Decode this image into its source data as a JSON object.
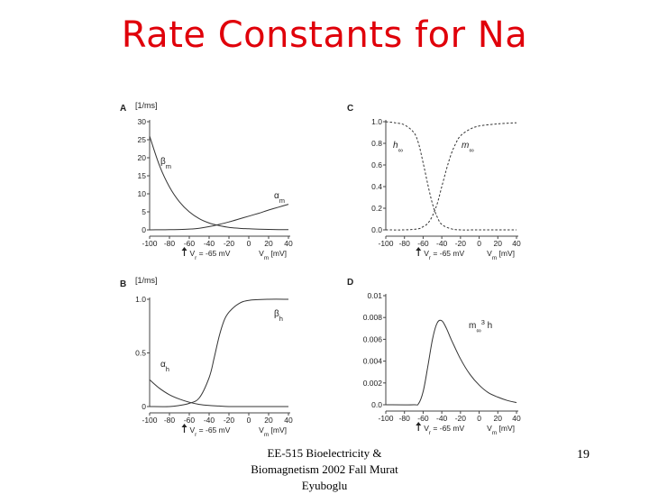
{
  "slide": {
    "title": "Rate Constants for Na",
    "footer_line1": "EE-515 Bioelectricity &",
    "footer_line2": "Biomagnetism 2002 Fall Murat",
    "footer_line3": "Eyuboglu",
    "page_number": "19",
    "title_color": "#e0000a"
  },
  "chart_data": [
    {
      "panel": "A",
      "type": "line",
      "ylabel": "[1/ms]",
      "xlim": [
        -100,
        40
      ],
      "ylim": [
        0,
        30
      ],
      "xticks": [
        -100,
        -80,
        -60,
        -40,
        -20,
        0,
        20,
        40
      ],
      "yticks": [
        0,
        5,
        10,
        15,
        20,
        25,
        30
      ],
      "ytick_labels": [
        "0",
        "5",
        "10",
        "15",
        "20",
        "25",
        "30"
      ],
      "rest_marker": {
        "x": -65,
        "label": "V_r = -65 mV"
      },
      "xaxis_title": "V_m [mV]",
      "series": [
        {
          "name": "β_m",
          "style": "solid",
          "x": [
            -100,
            -90,
            -80,
            -70,
            -60,
            -50,
            -40,
            -30,
            -20,
            -10,
            0,
            10,
            20,
            30,
            40
          ],
          "y": [
            26,
            17.8,
            11.9,
            7.8,
            5.0,
            3.1,
            1.9,
            1.2,
            0.7,
            0.45,
            0.3,
            0.2,
            0.12,
            0.08,
            0.05
          ]
        },
        {
          "name": "α_m",
          "style": "solid",
          "x": [
            -100,
            -90,
            -80,
            -70,
            -60,
            -50,
            -40,
            -30,
            -20,
            -10,
            0,
            10,
            20,
            30,
            40
          ],
          "y": [
            0.01,
            0.02,
            0.05,
            0.1,
            0.22,
            0.45,
            0.9,
            1.5,
            2.2,
            3.0,
            3.8,
            4.6,
            5.5,
            6.3,
            7.1
          ]
        }
      ]
    },
    {
      "panel": "C",
      "type": "line",
      "xlim": [
        -100,
        40
      ],
      "ylim": [
        0,
        1
      ],
      "xticks": [
        -100,
        -80,
        -60,
        -40,
        -20,
        0,
        20,
        40
      ],
      "yticks": [
        0,
        0.2,
        0.4,
        0.6,
        0.8,
        1.0
      ],
      "ytick_labels": [
        "0.0",
        "0.2",
        "0.4",
        "0.6",
        "0.8",
        "1.0"
      ],
      "rest_marker": {
        "x": -65,
        "label": "V_r = -65 mV"
      },
      "xaxis_title": "V_m [mV]",
      "series": [
        {
          "name": "h_∞",
          "style": "dashed",
          "x": [
            -100,
            -90,
            -80,
            -70,
            -65,
            -60,
            -55,
            -50,
            -45,
            -40,
            -30,
            -20,
            0,
            40
          ],
          "y": [
            1.0,
            0.99,
            0.97,
            0.9,
            0.8,
            0.62,
            0.42,
            0.24,
            0.12,
            0.05,
            0.01,
            0.0,
            0.0,
            0.0
          ]
        },
        {
          "name": "m_∞",
          "style": "dashed",
          "x": [
            -100,
            -80,
            -65,
            -60,
            -55,
            -50,
            -45,
            -40,
            -35,
            -30,
            -25,
            -20,
            -10,
            0,
            20,
            40
          ],
          "y": [
            0.0,
            0.0,
            0.01,
            0.03,
            0.06,
            0.13,
            0.24,
            0.4,
            0.56,
            0.7,
            0.8,
            0.87,
            0.93,
            0.96,
            0.98,
            0.99
          ]
        }
      ]
    },
    {
      "panel": "B",
      "type": "line",
      "ylabel": "[1/ms]",
      "xlim": [
        -100,
        40
      ],
      "ylim": [
        0,
        1
      ],
      "xticks": [
        -100,
        -80,
        -60,
        -40,
        -20,
        0,
        20,
        40
      ],
      "yticks": [
        0,
        0.5,
        1.0
      ],
      "ytick_labels": [
        "0",
        "0.5",
        "1.0"
      ],
      "rest_marker": {
        "x": -65,
        "label": "V_r = -65 mV"
      },
      "xaxis_title": "V_m [mV]",
      "series": [
        {
          "name": "β_h",
          "style": "solid",
          "x": [
            -100,
            -80,
            -70,
            -60,
            -50,
            -40,
            -35,
            -30,
            -25,
            -20,
            -10,
            0,
            20,
            40
          ],
          "y": [
            0.0,
            0.0,
            0.01,
            0.03,
            0.08,
            0.27,
            0.45,
            0.65,
            0.8,
            0.88,
            0.96,
            0.99,
            1.0,
            1.0
          ]
        },
        {
          "name": "α_h",
          "style": "solid",
          "x": [
            -100,
            -90,
            -80,
            -70,
            -60,
            -50,
            -40,
            -30,
            -20,
            0,
            40
          ],
          "y": [
            0.25,
            0.17,
            0.11,
            0.07,
            0.04,
            0.02,
            0.01,
            0.005,
            0.0,
            0.0,
            0.0
          ]
        }
      ]
    },
    {
      "panel": "D",
      "type": "line",
      "xlim": [
        -100,
        40
      ],
      "ylim": [
        0,
        0.01
      ],
      "xticks": [
        -100,
        -80,
        -60,
        -40,
        -20,
        0,
        20,
        40
      ],
      "yticks": [
        0,
        0.002,
        0.004,
        0.006,
        0.008,
        0.01
      ],
      "ytick_labels": [
        "0.0",
        "0.002",
        "0.004",
        "0.006",
        "0.008",
        "0.01"
      ],
      "rest_marker": {
        "x": -65,
        "label": "V_r = -65 mV"
      },
      "xaxis_title": "V_m [mV]",
      "series": [
        {
          "name": "m_∞³ h",
          "style": "solid",
          "x": [
            -100,
            -70,
            -65,
            -60,
            -55,
            -50,
            -45,
            -40,
            -35,
            -30,
            -20,
            -10,
            0,
            10,
            20,
            30,
            40
          ],
          "y": [
            0.0,
            0.0,
            0.0001,
            0.0012,
            0.0035,
            0.006,
            0.0075,
            0.0077,
            0.007,
            0.006,
            0.0042,
            0.0028,
            0.0018,
            0.0011,
            0.0007,
            0.0004,
            0.0002
          ]
        }
      ]
    }
  ]
}
